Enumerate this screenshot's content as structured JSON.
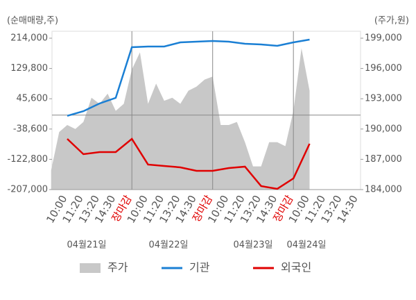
{
  "chart_data": {
    "type": "line",
    "y_label": "(순매매량,주)",
    "y2_label": "(주가,원)",
    "categories": [
      "10:00",
      "11:20",
      "13:20",
      "14:30",
      "장마감",
      "10:00",
      "11:20",
      "13:20",
      "14:30",
      "장마감",
      "10:00",
      "11:20",
      "13:20",
      "14:30",
      "장마감",
      "10:00",
      "11:20",
      "13:20",
      "14:30"
    ],
    "dates": [
      "04월21일",
      "04월22일",
      "04월23일",
      "04월24일"
    ],
    "ylim": [
      -207000,
      214000
    ],
    "yticks": [
      {
        "value": 214000,
        "label": "214,000"
      },
      {
        "value": 129800,
        "label": "129,800"
      },
      {
        "value": 45600,
        "label": "45,600"
      },
      {
        "value": -38600,
        "label": "-38,600"
      },
      {
        "value": -122800,
        "label": "-122,800"
      },
      {
        "value": -207000,
        "label": "-207,000"
      }
    ],
    "y2lim": [
      184000,
      199000
    ],
    "y2ticks": [
      {
        "value": 199000,
        "label": "199,000"
      },
      {
        "value": 196000,
        "label": "196,000"
      },
      {
        "value": 193000,
        "label": "193,000"
      },
      {
        "value": 190000,
        "label": "190,000"
      },
      {
        "value": 187000,
        "label": "187,000"
      },
      {
        "value": 184000,
        "label": "184,000"
      }
    ],
    "highlight_color": "#e00000",
    "price": {
      "name": "주가",
      "color": "#c8c8c8",
      "axis": "y2",
      "values": [
        185900,
        189700,
        190400,
        190000,
        190700,
        193100,
        192500,
        193500,
        191800,
        192500,
        195900,
        197600,
        192500,
        194500,
        192800,
        193100,
        192500,
        193800,
        194200,
        194900,
        195200,
        190400,
        190400,
        190700,
        188700,
        186300,
        186300,
        188700,
        188700,
        188300,
        191800,
        198000,
        193800
      ]
    },
    "series": [
      {
        "name": "기관",
        "color": "#1a7fd4",
        "values": [
          -2000,
          11000,
          32500,
          48000,
          189000,
          190800,
          190800,
          202400,
          204300,
          206300,
          204300,
          198500,
          196600,
          192800,
          202400,
          210100,
          null,
          null,
          null
        ]
      },
      {
        "name": "외국인",
        "color": "#e00000",
        "values": [
          -66000,
          -108500,
          -102700,
          -102700,
          -66000,
          -137400,
          -141300,
          -145200,
          -154800,
          -154800,
          -147100,
          -143200,
          -197300,
          -205000,
          -176000,
          -79500,
          null,
          null,
          null
        ]
      }
    ]
  }
}
